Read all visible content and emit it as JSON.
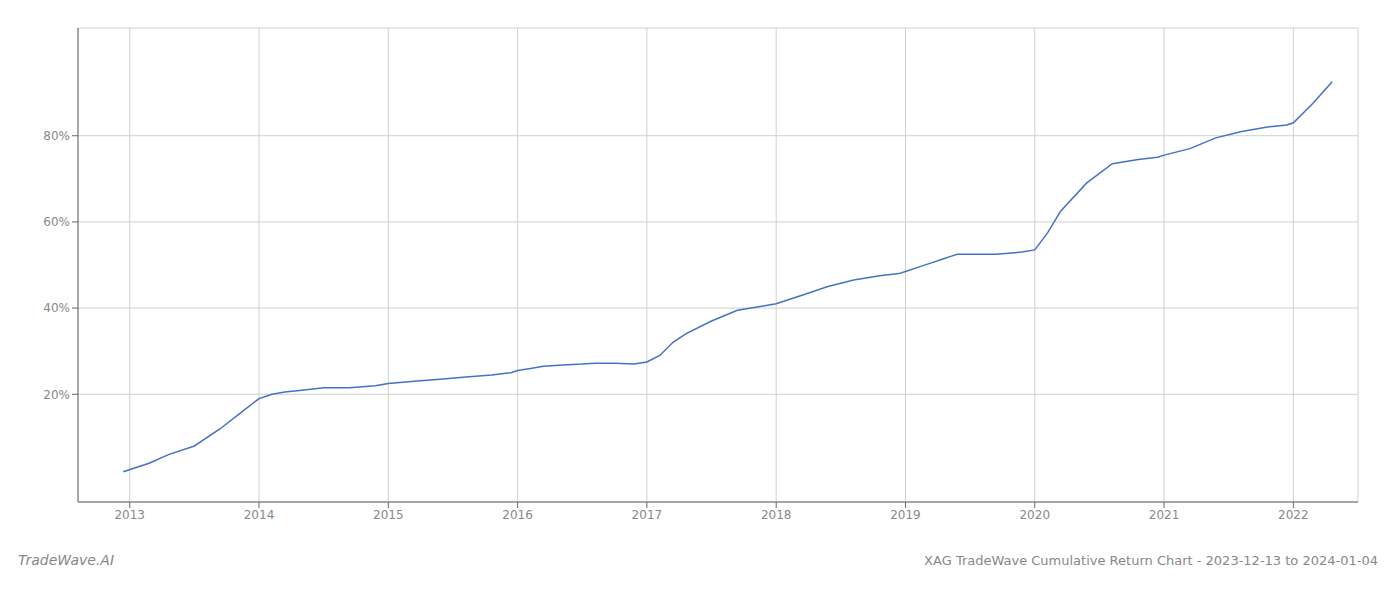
{
  "chart_data": {
    "type": "line",
    "title": "XAG TradeWave Cumulative Return Chart - 2023-12-13 to 2024-01-04",
    "annotations": [
      "TradeWave.AI"
    ],
    "x": [
      2012.95,
      2013.05,
      2013.15,
      2013.3,
      2013.5,
      2013.7,
      2013.85,
      2014.0,
      2014.05,
      2014.1,
      2014.2,
      2014.35,
      2014.5,
      2014.7,
      2014.9,
      2015.0,
      2015.2,
      2015.4,
      2015.6,
      2015.8,
      2015.95,
      2016.0,
      2016.1,
      2016.2,
      2016.35,
      2016.5,
      2016.6,
      2016.75,
      2016.9,
      2017.0,
      2017.1,
      2017.2,
      2017.3,
      2017.5,
      2017.7,
      2017.9,
      2018.0,
      2018.2,
      2018.4,
      2018.6,
      2018.8,
      2018.95,
      2019.0,
      2019.1,
      2019.2,
      2019.3,
      2019.35,
      2019.4,
      2019.5,
      2019.7,
      2019.9,
      2020.0,
      2020.1,
      2020.2,
      2020.4,
      2020.6,
      2020.8,
      2020.95,
      2021.0,
      2021.2,
      2021.4,
      2021.6,
      2021.8,
      2021.95,
      2022.0,
      2022.15,
      2022.3
    ],
    "values": [
      0.02,
      0.03,
      0.04,
      0.06,
      0.08,
      0.12,
      0.155,
      0.19,
      0.195,
      0.2,
      0.205,
      0.21,
      0.215,
      0.215,
      0.22,
      0.225,
      0.23,
      0.235,
      0.24,
      0.245,
      0.25,
      0.255,
      0.26,
      0.265,
      0.268,
      0.27,
      0.272,
      0.272,
      0.27,
      0.275,
      0.29,
      0.32,
      0.34,
      0.37,
      0.395,
      0.405,
      0.41,
      0.43,
      0.45,
      0.465,
      0.475,
      0.48,
      0.485,
      0.495,
      0.505,
      0.515,
      0.52,
      0.525,
      0.525,
      0.525,
      0.53,
      0.535,
      0.575,
      0.625,
      0.69,
      0.735,
      0.745,
      0.75,
      0.755,
      0.77,
      0.795,
      0.81,
      0.82,
      0.825,
      0.83,
      0.875,
      0.925
    ],
    "color": "#4472c4",
    "xlim": [
      2012.6,
      2022.5
    ],
    "xticks": [
      2013,
      2014,
      2015,
      2016,
      2017,
      2018,
      2019,
      2020,
      2021,
      2022
    ],
    "ylim": [
      -0.05,
      1.05
    ],
    "yticks": [
      {
        "value": 0.2,
        "label": "20%"
      },
      {
        "value": 0.4,
        "label": "40%"
      },
      {
        "value": 0.6,
        "label": "60%"
      },
      {
        "value": 0.8,
        "label": "80%"
      }
    ],
    "grid": true
  }
}
